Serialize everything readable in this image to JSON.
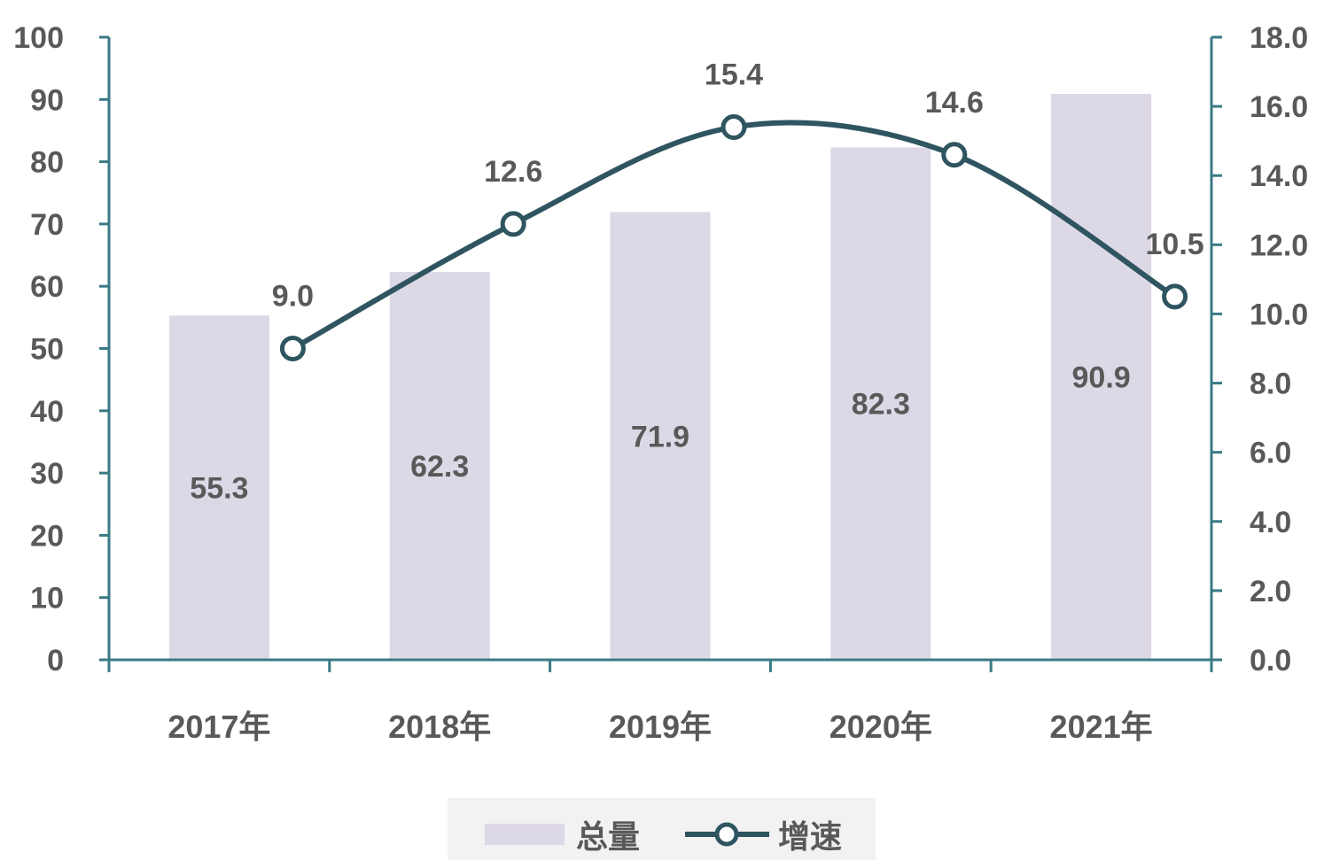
{
  "chart_data": {
    "type": "bar",
    "categories": [
      "2017年",
      "2018年",
      "2019年",
      "2020年",
      "2021年"
    ],
    "series": [
      {
        "name": "总量",
        "type": "bar",
        "axis": "left",
        "values": [
          55.3,
          62.3,
          71.9,
          82.3,
          90.9
        ],
        "color": "#ddd8e6"
      },
      {
        "name": "增速",
        "type": "line",
        "axis": "right",
        "smooth": true,
        "marker": "hollow-circle",
        "values": [
          9.0,
          12.6,
          15.4,
          14.6,
          10.5
        ],
        "color": "#2e5560"
      }
    ],
    "y_left": {
      "min": 0,
      "max": 100,
      "step": 10,
      "tick_labels": [
        "0",
        "10",
        "20",
        "30",
        "40",
        "50",
        "60",
        "70",
        "80",
        "90",
        "100"
      ]
    },
    "y_right": {
      "min": 0,
      "max": 18,
      "step": 2,
      "tick_labels": [
        "0.0",
        "2.0",
        "4.0",
        "6.0",
        "8.0",
        "10.0",
        "12.0",
        "14.0",
        "16.0",
        "18.0"
      ]
    },
    "bar_labels": [
      "55.3",
      "62.3",
      "71.9",
      "82.3",
      "90.9"
    ],
    "line_labels": [
      "9.0",
      "12.6",
      "15.4",
      "14.6",
      "10.5"
    ],
    "axis_color": "#3a7a85",
    "text_color": "#595959",
    "legend_background": "#f2f2f2",
    "legend_placement": "bottom-center",
    "grid": false
  }
}
